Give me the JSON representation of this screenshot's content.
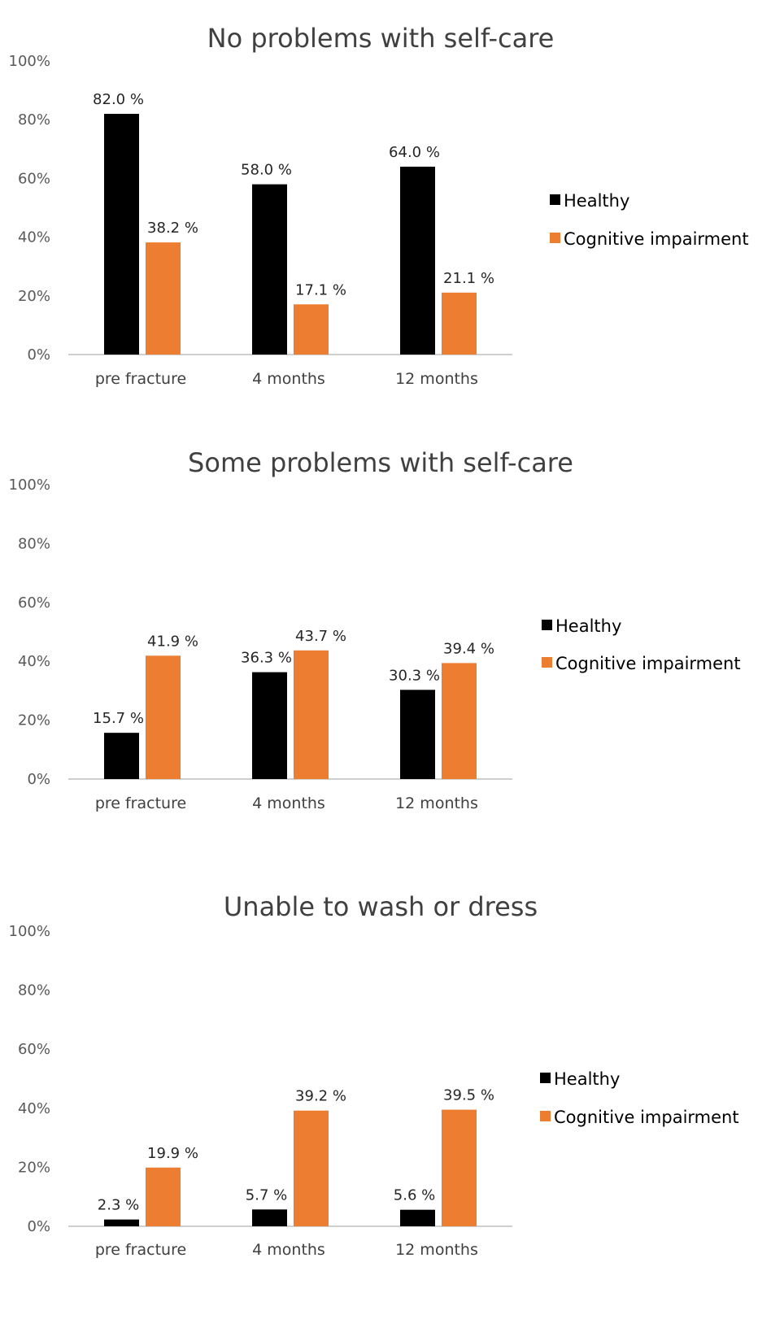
{
  "chart_data": [
    {
      "type": "bar",
      "title": "No problems with self-care",
      "categories": [
        "pre fracture",
        "4 months",
        "12 months"
      ],
      "series": [
        {
          "name": "Healthy",
          "values": [
            82.0,
            58.0,
            64.0
          ],
          "labels": [
            "82.0 %",
            "58.0 %",
            "64.0 %"
          ],
          "color": "#000000"
        },
        {
          "name": "Cognitive impairment",
          "values": [
            38.2,
            17.1,
            21.1
          ],
          "labels": [
            "38.2 %",
            "17.1 %",
            "21.1 %"
          ],
          "color": "#ED7D31"
        }
      ],
      "ylim": [
        0,
        100
      ],
      "yticks": [
        "0%",
        "20%",
        "40%",
        "60%",
        "80%",
        "100%"
      ],
      "grid": false,
      "legend_position": "right"
    },
    {
      "type": "bar",
      "title": "Some problems with self-care",
      "categories": [
        "pre fracture",
        "4 months",
        "12 months"
      ],
      "series": [
        {
          "name": "Healthy",
          "values": [
            15.7,
            36.3,
            30.3
          ],
          "labels": [
            "15.7 %",
            "36.3 %",
            "30.3 %"
          ],
          "color": "#000000"
        },
        {
          "name": "Cognitive impairment",
          "values": [
            41.9,
            43.7,
            39.4
          ],
          "labels": [
            "41.9 %",
            "43.7 %",
            "39.4 %"
          ],
          "color": "#ED7D31"
        }
      ],
      "ylim": [
        0,
        100
      ],
      "yticks": [
        "0%",
        "20%",
        "40%",
        "60%",
        "80%",
        "100%"
      ],
      "grid": false,
      "legend_position": "right"
    },
    {
      "type": "bar",
      "title": "Unable to wash or dress",
      "categories": [
        "pre fracture",
        "4 months",
        "12 months"
      ],
      "series": [
        {
          "name": "Healthy",
          "values": [
            2.3,
            5.7,
            5.6
          ],
          "labels": [
            "2.3 %",
            "5.7 %",
            "5.6 %"
          ],
          "color": "#000000"
        },
        {
          "name": "Cognitive impairment",
          "values": [
            19.9,
            39.2,
            39.5
          ],
          "labels": [
            "19.9 %",
            "39.2 %",
            "39.5 %"
          ],
          "color": "#ED7D31"
        }
      ],
      "ylim": [
        0,
        100
      ],
      "yticks": [
        "0%",
        "20%",
        "40%",
        "60%",
        "80%",
        "100%"
      ],
      "grid": false,
      "legend_position": "right"
    }
  ]
}
